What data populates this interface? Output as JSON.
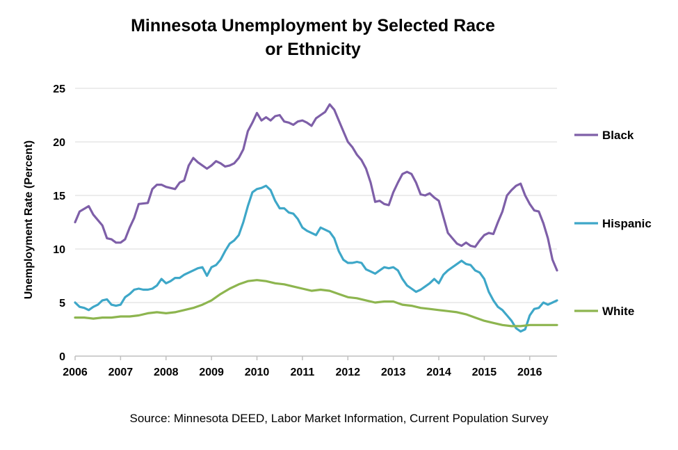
{
  "chart_data": {
    "type": "line",
    "title_line1": "Minnesota Unemployment by Selected Race",
    "title_line2": "or Ethnicity",
    "xlabel": "",
    "ylabel": "Unemployment  Rate  (Percent)",
    "source": "Source: Minnesota DEED, Labor Market Information, Current Population Survey",
    "x_ticks": [
      "2006",
      "2007",
      "2008",
      "2009",
      "2010",
      "2011",
      "2012",
      "2013",
      "2014",
      "2015",
      "2016"
    ],
    "y_ticks": [
      "0",
      "5",
      "10",
      "15",
      "20",
      "25"
    ],
    "xlim": [
      2006.0,
      2016.6
    ],
    "ylim": [
      0,
      25
    ],
    "grid": "horizontal",
    "legend": "right, labels beside line ends",
    "series": [
      {
        "name": "Black",
        "color": "#7e5fa8",
        "points": [
          [
            2006.0,
            12.5
          ],
          [
            2006.1,
            13.5
          ],
          [
            2006.3,
            14.0
          ],
          [
            2006.4,
            13.2
          ],
          [
            2006.6,
            12.2
          ],
          [
            2006.7,
            11.0
          ],
          [
            2006.8,
            10.9
          ],
          [
            2006.9,
            10.6
          ],
          [
            2007.0,
            10.6
          ],
          [
            2007.1,
            10.9
          ],
          [
            2007.2,
            12.0
          ],
          [
            2007.3,
            12.9
          ],
          [
            2007.4,
            14.2
          ],
          [
            2007.6,
            14.3
          ],
          [
            2007.7,
            15.6
          ],
          [
            2007.8,
            16.0
          ],
          [
            2007.9,
            16.0
          ],
          [
            2008.0,
            15.8
          ],
          [
            2008.2,
            15.6
          ],
          [
            2008.3,
            16.2
          ],
          [
            2008.4,
            16.4
          ],
          [
            2008.5,
            17.8
          ],
          [
            2008.6,
            18.5
          ],
          [
            2008.7,
            18.1
          ],
          [
            2008.8,
            17.8
          ],
          [
            2008.9,
            17.5
          ],
          [
            2009.0,
            17.8
          ],
          [
            2009.1,
            18.2
          ],
          [
            2009.2,
            18.0
          ],
          [
            2009.3,
            17.7
          ],
          [
            2009.4,
            17.8
          ],
          [
            2009.5,
            18.0
          ],
          [
            2009.6,
            18.5
          ],
          [
            2009.7,
            19.3
          ],
          [
            2009.8,
            21.0
          ],
          [
            2009.9,
            21.8
          ],
          [
            2010.0,
            22.7
          ],
          [
            2010.1,
            22.0
          ],
          [
            2010.2,
            22.3
          ],
          [
            2010.3,
            22.0
          ],
          [
            2010.4,
            22.4
          ],
          [
            2010.5,
            22.5
          ],
          [
            2010.6,
            21.9
          ],
          [
            2010.7,
            21.8
          ],
          [
            2010.8,
            21.6
          ],
          [
            2010.9,
            21.9
          ],
          [
            2011.0,
            22.0
          ],
          [
            2011.1,
            21.8
          ],
          [
            2011.2,
            21.5
          ],
          [
            2011.3,
            22.2
          ],
          [
            2011.4,
            22.5
          ],
          [
            2011.5,
            22.8
          ],
          [
            2011.6,
            23.5
          ],
          [
            2011.7,
            23.0
          ],
          [
            2011.8,
            22.0
          ],
          [
            2011.9,
            21.0
          ],
          [
            2012.0,
            20.0
          ],
          [
            2012.1,
            19.5
          ],
          [
            2012.2,
            18.8
          ],
          [
            2012.3,
            18.3
          ],
          [
            2012.4,
            17.5
          ],
          [
            2012.5,
            16.2
          ],
          [
            2012.6,
            14.4
          ],
          [
            2012.7,
            14.5
          ],
          [
            2012.8,
            14.2
          ],
          [
            2012.9,
            14.1
          ],
          [
            2013.0,
            15.3
          ],
          [
            2013.1,
            16.2
          ],
          [
            2013.2,
            17.0
          ],
          [
            2013.3,
            17.2
          ],
          [
            2013.4,
            17.0
          ],
          [
            2013.5,
            16.2
          ],
          [
            2013.6,
            15.1
          ],
          [
            2013.7,
            15.0
          ],
          [
            2013.8,
            15.2
          ],
          [
            2013.9,
            14.8
          ],
          [
            2014.0,
            14.5
          ],
          [
            2014.1,
            13.0
          ],
          [
            2014.2,
            11.5
          ],
          [
            2014.3,
            11.0
          ],
          [
            2014.4,
            10.5
          ],
          [
            2014.5,
            10.3
          ],
          [
            2014.6,
            10.6
          ],
          [
            2014.7,
            10.3
          ],
          [
            2014.8,
            10.2
          ],
          [
            2014.9,
            10.8
          ],
          [
            2015.0,
            11.3
          ],
          [
            2015.1,
            11.5
          ],
          [
            2015.2,
            11.4
          ],
          [
            2015.3,
            12.5
          ],
          [
            2015.4,
            13.5
          ],
          [
            2015.5,
            15.0
          ],
          [
            2015.6,
            15.5
          ],
          [
            2015.7,
            15.9
          ],
          [
            2015.8,
            16.1
          ],
          [
            2015.9,
            15.0
          ],
          [
            2016.0,
            14.2
          ],
          [
            2016.1,
            13.6
          ],
          [
            2016.2,
            13.5
          ],
          [
            2016.3,
            12.4
          ],
          [
            2016.4,
            11.0
          ],
          [
            2016.5,
            9.0
          ],
          [
            2016.6,
            8.0
          ]
        ]
      },
      {
        "name": "Hispanic",
        "color": "#3ea7c8",
        "points": [
          [
            2006.0,
            5.0
          ],
          [
            2006.1,
            4.6
          ],
          [
            2006.2,
            4.5
          ],
          [
            2006.3,
            4.3
          ],
          [
            2006.4,
            4.6
          ],
          [
            2006.5,
            4.8
          ],
          [
            2006.6,
            5.2
          ],
          [
            2006.7,
            5.3
          ],
          [
            2006.8,
            4.8
          ],
          [
            2006.9,
            4.7
          ],
          [
            2007.0,
            4.8
          ],
          [
            2007.1,
            5.5
          ],
          [
            2007.2,
            5.8
          ],
          [
            2007.3,
            6.2
          ],
          [
            2007.4,
            6.3
          ],
          [
            2007.5,
            6.2
          ],
          [
            2007.6,
            6.2
          ],
          [
            2007.7,
            6.3
          ],
          [
            2007.8,
            6.6
          ],
          [
            2007.9,
            7.2
          ],
          [
            2008.0,
            6.8
          ],
          [
            2008.1,
            7.0
          ],
          [
            2008.2,
            7.3
          ],
          [
            2008.3,
            7.3
          ],
          [
            2008.4,
            7.6
          ],
          [
            2008.5,
            7.8
          ],
          [
            2008.6,
            8.0
          ],
          [
            2008.7,
            8.2
          ],
          [
            2008.8,
            8.3
          ],
          [
            2008.9,
            7.5
          ],
          [
            2009.0,
            8.3
          ],
          [
            2009.1,
            8.5
          ],
          [
            2009.2,
            9.0
          ],
          [
            2009.3,
            9.8
          ],
          [
            2009.4,
            10.5
          ],
          [
            2009.5,
            10.8
          ],
          [
            2009.6,
            11.3
          ],
          [
            2009.7,
            12.5
          ],
          [
            2009.8,
            14.0
          ],
          [
            2009.9,
            15.3
          ],
          [
            2010.0,
            15.6
          ],
          [
            2010.1,
            15.7
          ],
          [
            2010.2,
            15.9
          ],
          [
            2010.3,
            15.5
          ],
          [
            2010.4,
            14.5
          ],
          [
            2010.5,
            13.8
          ],
          [
            2010.6,
            13.8
          ],
          [
            2010.7,
            13.4
          ],
          [
            2010.8,
            13.3
          ],
          [
            2010.9,
            12.8
          ],
          [
            2011.0,
            12.0
          ],
          [
            2011.1,
            11.7
          ],
          [
            2011.2,
            11.5
          ],
          [
            2011.3,
            11.3
          ],
          [
            2011.4,
            12.0
          ],
          [
            2011.5,
            11.8
          ],
          [
            2011.6,
            11.6
          ],
          [
            2011.7,
            11.0
          ],
          [
            2011.8,
            9.8
          ],
          [
            2011.9,
            9.0
          ],
          [
            2012.0,
            8.7
          ],
          [
            2012.1,
            8.7
          ],
          [
            2012.2,
            8.8
          ],
          [
            2012.3,
            8.7
          ],
          [
            2012.4,
            8.1
          ],
          [
            2012.5,
            7.9
          ],
          [
            2012.6,
            7.7
          ],
          [
            2012.7,
            8.0
          ],
          [
            2012.8,
            8.3
          ],
          [
            2012.9,
            8.2
          ],
          [
            2013.0,
            8.3
          ],
          [
            2013.1,
            8.0
          ],
          [
            2013.2,
            7.2
          ],
          [
            2013.3,
            6.6
          ],
          [
            2013.4,
            6.3
          ],
          [
            2013.5,
            6.0
          ],
          [
            2013.6,
            6.2
          ],
          [
            2013.7,
            6.5
          ],
          [
            2013.8,
            6.8
          ],
          [
            2013.9,
            7.2
          ],
          [
            2014.0,
            6.8
          ],
          [
            2014.1,
            7.6
          ],
          [
            2014.2,
            8.0
          ],
          [
            2014.3,
            8.3
          ],
          [
            2014.4,
            8.6
          ],
          [
            2014.5,
            8.9
          ],
          [
            2014.6,
            8.6
          ],
          [
            2014.7,
            8.5
          ],
          [
            2014.8,
            8.0
          ],
          [
            2014.9,
            7.8
          ],
          [
            2015.0,
            7.2
          ],
          [
            2015.1,
            6.0
          ],
          [
            2015.2,
            5.2
          ],
          [
            2015.3,
            4.6
          ],
          [
            2015.4,
            4.3
          ],
          [
            2015.5,
            3.8
          ],
          [
            2015.6,
            3.3
          ],
          [
            2015.7,
            2.6
          ],
          [
            2015.8,
            2.3
          ],
          [
            2015.9,
            2.5
          ],
          [
            2016.0,
            3.8
          ],
          [
            2016.1,
            4.4
          ],
          [
            2016.2,
            4.5
          ],
          [
            2016.3,
            5.0
          ],
          [
            2016.4,
            4.8
          ],
          [
            2016.5,
            5.0
          ],
          [
            2016.6,
            5.2
          ]
        ]
      },
      {
        "name": "White",
        "color": "#8db54f",
        "points": [
          [
            2006.0,
            3.6
          ],
          [
            2006.2,
            3.6
          ],
          [
            2006.4,
            3.5
          ],
          [
            2006.6,
            3.6
          ],
          [
            2006.8,
            3.6
          ],
          [
            2007.0,
            3.7
          ],
          [
            2007.2,
            3.7
          ],
          [
            2007.4,
            3.8
          ],
          [
            2007.6,
            4.0
          ],
          [
            2007.8,
            4.1
          ],
          [
            2008.0,
            4.0
          ],
          [
            2008.2,
            4.1
          ],
          [
            2008.4,
            4.3
          ],
          [
            2008.6,
            4.5
          ],
          [
            2008.8,
            4.8
          ],
          [
            2009.0,
            5.2
          ],
          [
            2009.2,
            5.8
          ],
          [
            2009.4,
            6.3
          ],
          [
            2009.6,
            6.7
          ],
          [
            2009.8,
            7.0
          ],
          [
            2010.0,
            7.1
          ],
          [
            2010.2,
            7.0
          ],
          [
            2010.4,
            6.8
          ],
          [
            2010.6,
            6.7
          ],
          [
            2010.8,
            6.5
          ],
          [
            2011.0,
            6.3
          ],
          [
            2011.2,
            6.1
          ],
          [
            2011.4,
            6.2
          ],
          [
            2011.6,
            6.1
          ],
          [
            2011.8,
            5.8
          ],
          [
            2012.0,
            5.5
          ],
          [
            2012.2,
            5.4
          ],
          [
            2012.4,
            5.2
          ],
          [
            2012.6,
            5.0
          ],
          [
            2012.8,
            5.1
          ],
          [
            2013.0,
            5.1
          ],
          [
            2013.2,
            4.8
          ],
          [
            2013.4,
            4.7
          ],
          [
            2013.6,
            4.5
          ],
          [
            2013.8,
            4.4
          ],
          [
            2014.0,
            4.3
          ],
          [
            2014.2,
            4.2
          ],
          [
            2014.4,
            4.1
          ],
          [
            2014.6,
            3.9
          ],
          [
            2014.8,
            3.6
          ],
          [
            2015.0,
            3.3
          ],
          [
            2015.2,
            3.1
          ],
          [
            2015.4,
            2.9
          ],
          [
            2015.6,
            2.8
          ],
          [
            2015.8,
            2.8
          ],
          [
            2016.0,
            2.9
          ],
          [
            2016.2,
            2.9
          ],
          [
            2016.4,
            2.9
          ],
          [
            2016.6,
            2.9
          ]
        ]
      }
    ]
  }
}
